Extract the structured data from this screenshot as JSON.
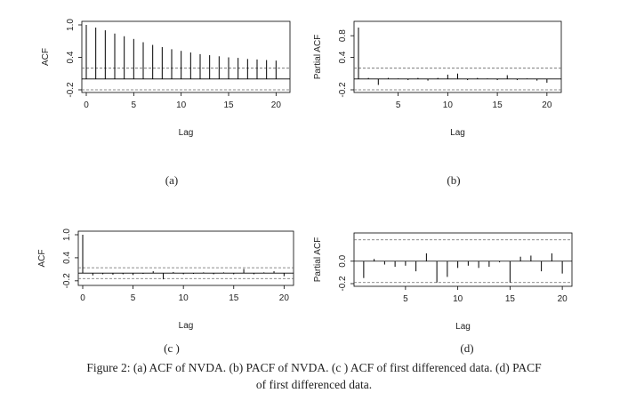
{
  "caption": {
    "line1": "Figure 2: (a) ACF of NVDA. (b) PACF of NVDA.  (c ) ACF of first differenced data. (d) PACF",
    "line2": "of first differenced data."
  },
  "colors": {
    "bar": "#000000",
    "ci": "#666666",
    "frame": "#000000"
  },
  "chart_data": [
    {
      "type": "bar",
      "panel_label": "(a)",
      "xlabel": "Lag",
      "ylabel": "ACF",
      "xlim": [
        0,
        21
      ],
      "ylim": [
        -0.2,
        1.0
      ],
      "xticks": [
        "0",
        "5",
        "10",
        "15",
        "20"
      ],
      "yticks": [
        "-0.2",
        "0.4",
        "1.0"
      ],
      "ci": [
        0.2,
        -0.2
      ],
      "x": [
        0,
        1,
        2,
        3,
        4,
        5,
        6,
        7,
        8,
        9,
        10,
        11,
        12,
        13,
        14,
        15,
        16,
        17,
        18,
        19,
        20
      ],
      "values": [
        1.0,
        0.95,
        0.9,
        0.84,
        0.79,
        0.74,
        0.68,
        0.63,
        0.59,
        0.55,
        0.52,
        0.49,
        0.46,
        0.44,
        0.42,
        0.4,
        0.39,
        0.37,
        0.36,
        0.35,
        0.34
      ]
    },
    {
      "type": "bar",
      "panel_label": "(b)",
      "xlabel": "Lag",
      "ylabel": "Partial ACF",
      "xlim": [
        1,
        21
      ],
      "ylim": [
        -0.2,
        1.0
      ],
      "xticks": [
        "5",
        "10",
        "15",
        "20"
      ],
      "yticks": [
        "-0.2",
        "0.4",
        "0.8"
      ],
      "ci": [
        0.2,
        -0.2
      ],
      "x": [
        1,
        2,
        3,
        4,
        5,
        6,
        7,
        8,
        9,
        10,
        11,
        12,
        13,
        14,
        15,
        16,
        17,
        18,
        19,
        20
      ],
      "values": [
        0.95,
        0.02,
        -0.11,
        0.02,
        0.01,
        -0.02,
        0.02,
        -0.03,
        0.02,
        0.08,
        0.1,
        -0.02,
        0.02,
        0.01,
        -0.02,
        0.07,
        -0.02,
        0.01,
        -0.03,
        -0.07
      ]
    },
    {
      "type": "bar",
      "panel_label": "(c )",
      "xlabel": "Lag",
      "ylabel": "ACF",
      "xlim": [
        0,
        20.5
      ],
      "ylim": [
        -0.25,
        1.0
      ],
      "xticks": [
        "0",
        "5",
        "10",
        "15",
        "20"
      ],
      "yticks": [
        "-0.2",
        "0.4",
        "1.0"
      ],
      "ci": [
        0.14,
        -0.14
      ],
      "x": [
        0,
        1,
        2,
        3,
        4,
        5,
        6,
        7,
        8,
        9,
        10,
        11,
        12,
        13,
        14,
        15,
        16,
        17,
        18,
        19,
        20
      ],
      "values": [
        1.0,
        -0.06,
        -0.03,
        -0.04,
        -0.03,
        -0.05,
        -0.02,
        0.05,
        -0.16,
        0.03,
        -0.03,
        -0.02,
        0.02,
        -0.03,
        0.02,
        -0.03,
        0.11,
        -0.03,
        0.02,
        0.05,
        -0.08
      ]
    },
    {
      "type": "bar",
      "panel_label": "(d)",
      "xlabel": "Lag",
      "ylabel": "Partial ACF",
      "xlim": [
        0.5,
        20.5
      ],
      "ylim": [
        -0.2,
        0.22
      ],
      "xticks": [
        "5",
        "10",
        "15",
        "20"
      ],
      "yticks": [
        "-0.2",
        "0.0"
      ],
      "ci": [
        0.19,
        -0.19
      ],
      "x": [
        1,
        2,
        3,
        4,
        5,
        6,
        7,
        8,
        9,
        10,
        11,
        12,
        13,
        14,
        15,
        16,
        17,
        18,
        19,
        20
      ],
      "values": [
        -0.15,
        0.02,
        -0.03,
        -0.05,
        -0.04,
        -0.09,
        0.07,
        -0.19,
        -0.14,
        -0.06,
        -0.04,
        -0.06,
        -0.05,
        -0.01,
        -0.19,
        0.04,
        0.05,
        -0.09,
        0.07,
        -0.11
      ]
    }
  ]
}
